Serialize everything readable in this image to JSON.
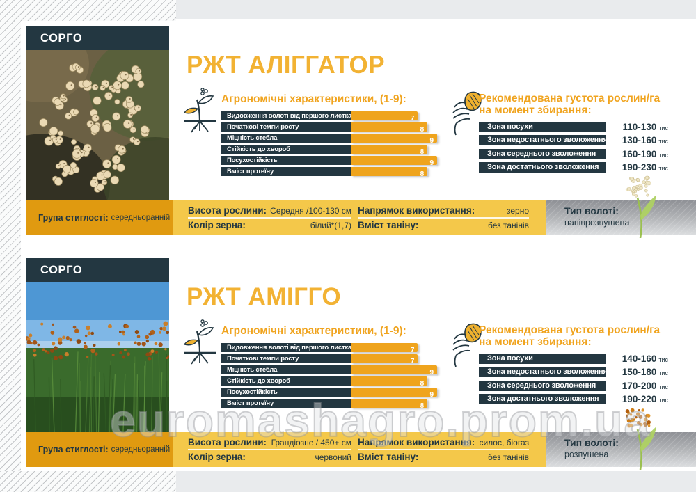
{
  "page": {
    "watermark": "euromashagro.prom.ua"
  },
  "colors": {
    "navy": "#233741",
    "bar_yellow": "#efa41d",
    "title_yellow": "#f2b233",
    "footer_gold": "#e09a10",
    "footer_yellow": "#f4c84a"
  },
  "cards": [
    {
      "category": "СОРГО",
      "title": "РЖТ АЛІГГАТОР",
      "agro": {
        "heading": "Агрономічні характеристики, (1-9):",
        "scale_max": 9,
        "traits": [
          {
            "label": "Видовження волоті від першого листка",
            "value": 7
          },
          {
            "label": "Початкові темпи росту",
            "value": 8
          },
          {
            "label": "Міцність стебла",
            "value": 9
          },
          {
            "label": "Стійкість до хвороб",
            "value": 8
          },
          {
            "label": "Посухостійкість",
            "value": 9
          },
          {
            "label": "Вміст протеїну",
            "value": 8
          }
        ]
      },
      "density": {
        "heading_line1": "Рекомендована густота рослин/га",
        "heading_line2": "на момент збирання:",
        "unit": "тис",
        "zones": [
          {
            "label": "Зона посухи",
            "value": "110-130"
          },
          {
            "label": "Зона недостатнього зволоження",
            "value": "130-160"
          },
          {
            "label": "Зона середнього зволоження",
            "value": "160-190"
          },
          {
            "label": "Зона достатнього зволоження",
            "value": "190-230"
          }
        ]
      },
      "footer": {
        "maturity_label": "Група стиглості:",
        "maturity_value": "середньоранній",
        "height_label": "Висота рослини:",
        "height_value": "Середня /100-130 см",
        "grain_color_label": "Колір зерна:",
        "grain_color_value": "білий*(1,7)",
        "usage_label": "Напрямок використання:",
        "usage_value": "зерно",
        "tannin_label": "Вміст таніну:",
        "tannin_value": "без танінів",
        "panicle_label": "Тип волоті:",
        "panicle_value": "напіврозпушена"
      }
    },
    {
      "category": "СОРГО",
      "title": "РЖТ АМІГГО",
      "agro": {
        "heading": "Агрономічні характеристики, (1-9):",
        "scale_max": 9,
        "traits": [
          {
            "label": "Видовження волоті від першого листка",
            "value": 7
          },
          {
            "label": "Початкові темпи росту",
            "value": 7
          },
          {
            "label": "Міцність стебла",
            "value": 9
          },
          {
            "label": "Стійкість до хвороб",
            "value": 8
          },
          {
            "label": "Посухостійкість",
            "value": 9
          },
          {
            "label": "Вміст протеїну",
            "value": 8
          }
        ]
      },
      "density": {
        "heading_line1": "Рекомендована густота рослин/га",
        "heading_line2": "на момент збирання:",
        "unit": "тис",
        "zones": [
          {
            "label": "Зона посухи",
            "value": "140-160"
          },
          {
            "label": "Зона недостатнього зволоження",
            "value": "150-180"
          },
          {
            "label": "Зона середнього зволоження",
            "value": "170-200"
          },
          {
            "label": "Зона достатнього зволоження",
            "value": "190-220"
          }
        ]
      },
      "footer": {
        "maturity_label": "Група стиглості:",
        "maturity_value": "середньоранній",
        "height_label": "Висота рослини:",
        "height_value": "Грандіозне / 450+ см",
        "grain_color_label": "Колір зерна:",
        "grain_color_value": "червоний",
        "usage_label": "Напрямок використання:",
        "usage_value": "силос, біогаз",
        "tannin_label": "Вміст таніну:",
        "tannin_value": "без танінів",
        "panicle_label": "Тип волоті:",
        "panicle_value": "розпушена"
      }
    }
  ]
}
